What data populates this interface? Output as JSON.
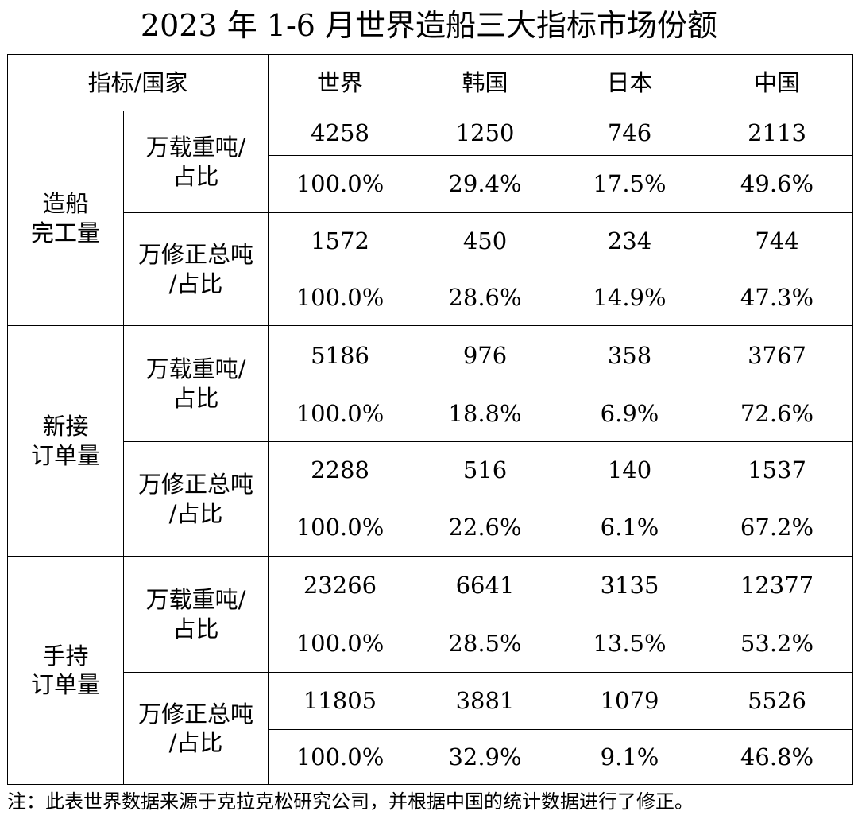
{
  "title": "2023 年 1-6 月世界造船三大指标市场份额",
  "header": {
    "label": "指标/国家",
    "countries": [
      "世界",
      "韩国",
      "日本",
      "中国"
    ]
  },
  "groups": [
    {
      "name_line1": "造船",
      "name_line2": "完工量",
      "metrics": [
        {
          "label_line1": "万载重吨/",
          "label_line2": "占比",
          "values": [
            "4258",
            "1250",
            "746",
            "2113"
          ],
          "shares": [
            "100.0%",
            "29.4%",
            "17.5%",
            "49.6%"
          ]
        },
        {
          "label_line1": "万修正总吨",
          "label_line2": "/占比",
          "values": [
            "1572",
            "450",
            "234",
            "744"
          ],
          "shares": [
            "100.0%",
            "28.6%",
            "14.9%",
            "47.3%"
          ]
        }
      ]
    },
    {
      "name_line1": "新接",
      "name_line2": "订单量",
      "metrics": [
        {
          "label_line1": "万载重吨/",
          "label_line2": "占比",
          "values": [
            "5186",
            "976",
            "358",
            "3767"
          ],
          "shares": [
            "100.0%",
            "18.8%",
            "6.9%",
            "72.6%"
          ]
        },
        {
          "label_line1": "万修正总吨",
          "label_line2": "/占比",
          "values": [
            "2288",
            "516",
            "140",
            "1537"
          ],
          "shares": [
            "100.0%",
            "22.6%",
            "6.1%",
            "67.2%"
          ]
        }
      ]
    },
    {
      "name_line1": "手持",
      "name_line2": "订单量",
      "metrics": [
        {
          "label_line1": "万载重吨/",
          "label_line2": "占比",
          "values": [
            "23266",
            "6641",
            "3135",
            "12377"
          ],
          "shares": [
            "100.0%",
            "28.5%",
            "13.5%",
            "53.2%"
          ]
        },
        {
          "label_line1": "万修正总吨",
          "label_line2": "/占比",
          "values": [
            "11805",
            "3881",
            "1079",
            "5526"
          ],
          "shares": [
            "100.0%",
            "32.9%",
            "9.1%",
            "46.8%"
          ]
        }
      ]
    }
  ],
  "note": "注：此表世界数据来源于克拉克松研究公司，并根据中国的统计数据进行了修正。"
}
